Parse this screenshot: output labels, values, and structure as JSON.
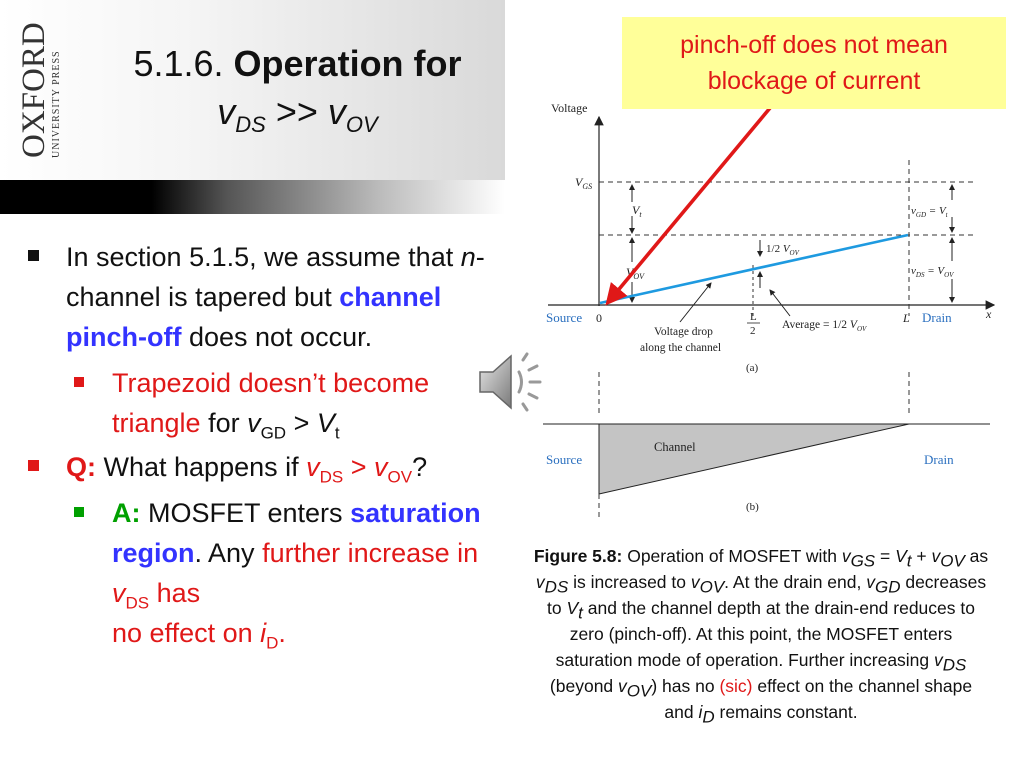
{
  "header": {
    "logo_text_main": "OXFORD",
    "logo_text_sub": "UNIVERSITY PRESS",
    "title_number": "5.1.6.",
    "title_bold": "Operation for",
    "title_v1": "v",
    "title_sub1": "DS",
    "title_op": ">>",
    "title_v2": "v",
    "title_sub2": "OV"
  },
  "callout": {
    "text": "pinch-off does not mean blockage of current"
  },
  "bullets": {
    "b1_pre": "In section 5.1.5, we assume that ",
    "b1_n": "n",
    "b1_mid": "-channel is tapered but ",
    "b1_blue": "channel pinch-off",
    "b1_post": " does not occur.",
    "b2_red": "Trapezoid doesn’t become triangle",
    "b2_for": " for ",
    "b2_v": "v",
    "b2_vsub": "GD",
    "b2_gt": " > ",
    "b2_V": "V",
    "b2_Vsub": "t",
    "b3_q": "Q:",
    "b3_text": " What happens if ",
    "b3_v1": "v",
    "b3_sub1": "DS",
    "b3_gt": " > ",
    "b3_v2": "v",
    "b3_sub2": "OV",
    "b3_qm": "?",
    "b4_a": "A:",
    "b4_text": " MOSFET enters ",
    "b4_blue": "saturation region",
    "b4_any": ".  Any ",
    "b4_red": "further increase in ",
    "b4_v": "v",
    "b4_sub": "DS",
    "b4_has": " has",
    "b4_end": "no effect on ",
    "b4_i": "i",
    "b4_isub": "D",
    "b4_dot": "."
  },
  "diagram": {
    "voltage_label": "Voltage",
    "vgs": "V",
    "vgs_sub": "GS",
    "vt": "V",
    "vt_sub": "t",
    "vov": "V",
    "vov_sub": "OV",
    "vgd_eq": "v",
    "vgd_sub": "GD",
    "vgd_rhs": " = V",
    "vgd_rhs_sub": "t",
    "vds_eq": "v",
    "vds_sub": "DS",
    "vds_rhs": " = V",
    "vds_rhs_sub": "OV",
    "half": "1",
    "half_den": "2",
    "half_v": "V",
    "half_sub": "OV",
    "source": "Source",
    "zero": "0",
    "l_over_2_num": "L",
    "l_over_2_den": "2",
    "l": "L",
    "drain": "Drain",
    "x": "x",
    "voltage_drop": "Voltage drop",
    "along_channel": "along the channel",
    "average": "Average = ",
    "avg_num": "1",
    "avg_den": "2",
    "avg_v": "V",
    "avg_sub": "OV",
    "label_a": "(a)",
    "source_b": "Source",
    "channel": "Channel",
    "drain_b": "Drain",
    "label_b": "(b)"
  },
  "caption": {
    "fig": "Figure 5.8:",
    "t1": " Operation of MOSFET with ",
    "v1": "v",
    "s1": "GS",
    "t2": " = ",
    "v2": "V",
    "s2": "t",
    "t3": " + ",
    "v3": "v",
    "s3": "OV",
    "t4": " as ",
    "v4": "v",
    "s4": "DS",
    "t5": " is increased to ",
    "v5": "v",
    "s5": "OV",
    "t6": ".  At the drain end, ",
    "v6": "v",
    "s6": "GD",
    "t7": " decreases to ",
    "v7": "V",
    "s7": "t",
    "t8": " and the channel depth at the drain-end reduces to zero (pinch-off).  At this point, the MOSFET enters saturation mode of operation.  Further increasing ",
    "v8": "v",
    "s8": "DS",
    "t9": " (beyond ",
    "v9": "v",
    "s9": "OV",
    "t10": ") has no ",
    "sic": "(sic)",
    "t11": " effect on the channel shape and ",
    "v10": "i",
    "s10": "D",
    "t12": " remains constant."
  }
}
